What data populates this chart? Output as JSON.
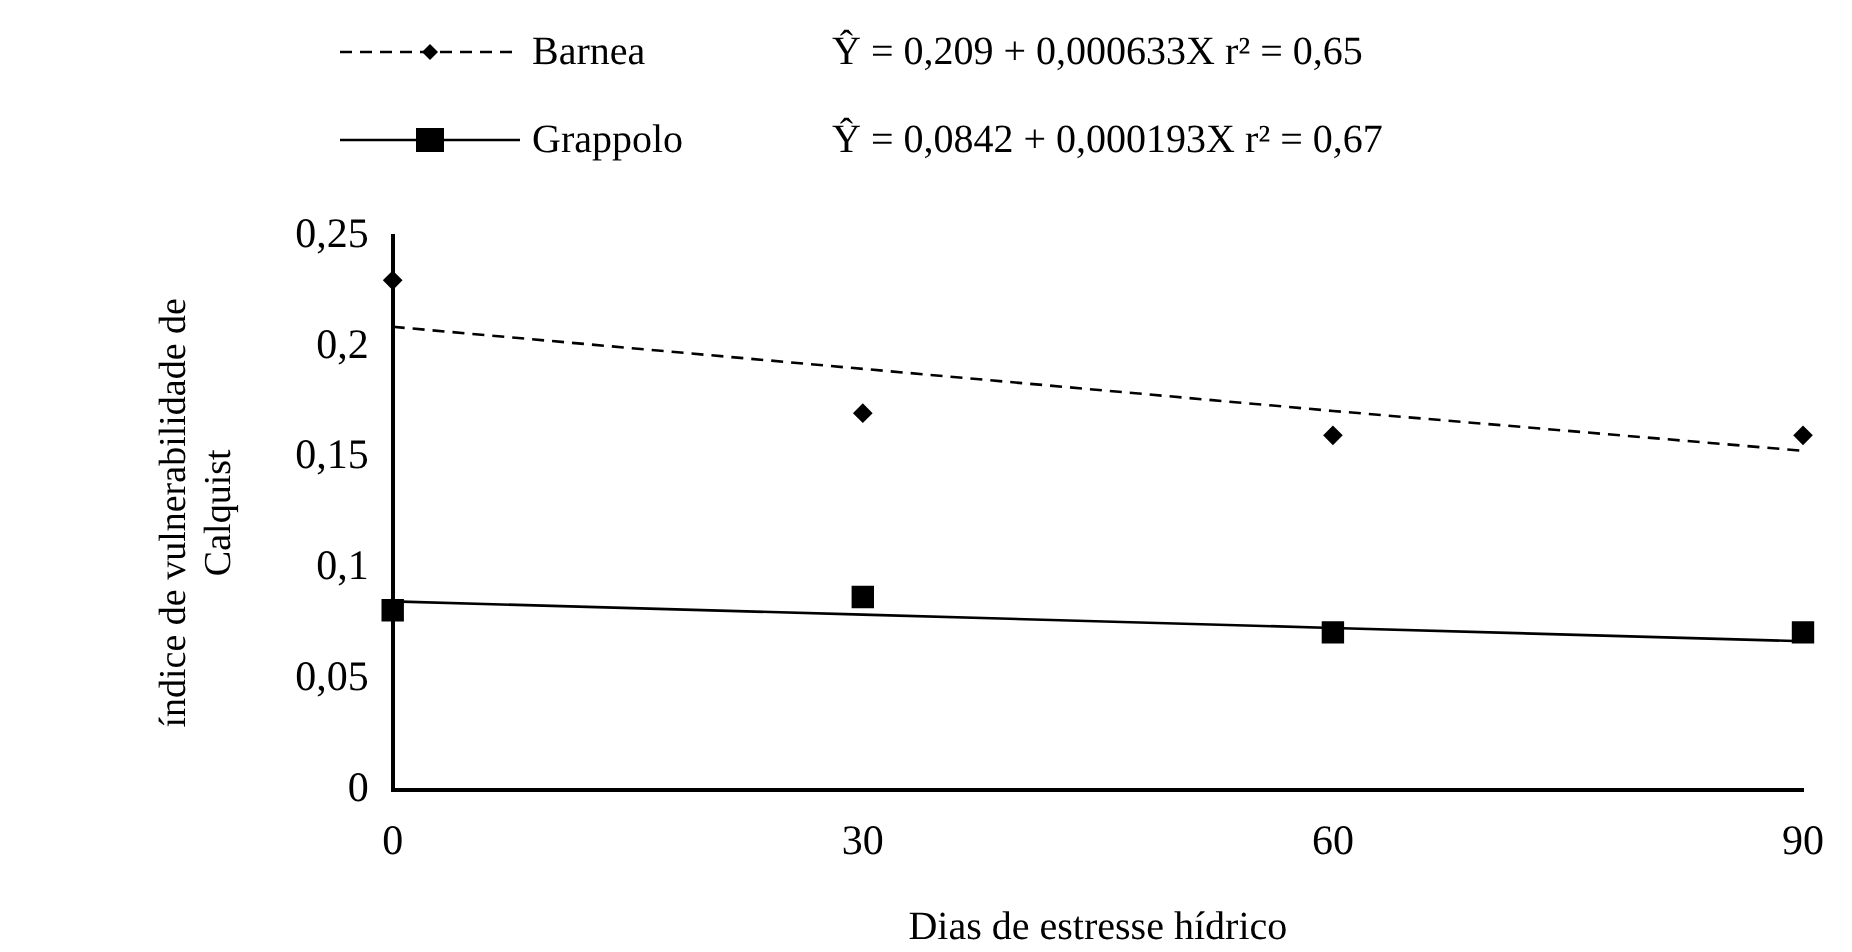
{
  "chart_data": {
    "type": "scatter",
    "xlabel": "Dias de estresse hídrico",
    "ylabel": "índice de vulnerabilidade de\nCalquist",
    "x": [
      0,
      30,
      60,
      90
    ],
    "xlim": [
      0,
      90
    ],
    "xticks": [
      0,
      30,
      60,
      90
    ],
    "ylim": [
      0,
      0.25
    ],
    "yticks": [
      0,
      {
        "value": 0.05,
        "label": "0,05"
      },
      {
        "value": 0.1,
        "label": "0,1"
      },
      {
        "value": 0.15,
        "label": "0,15"
      },
      {
        "value": 0.2,
        "label": "0,2"
      },
      {
        "value": 0.25,
        "label": "0,25"
      }
    ],
    "grid": false,
    "legend": "top",
    "series": [
      {
        "name": "Barnea",
        "color": "#000000",
        "marker": "diamond",
        "values": [
          0.23,
          0.17,
          0.16,
          0.16
        ]
      },
      {
        "type": "line",
        "color": "#000000",
        "line_style": "dashed",
        "marker": "none",
        "values": [
          0.209,
          0.19,
          0.171,
          0.153
        ]
      },
      {
        "name": "Grappolo",
        "color": "#000000",
        "marker": "square",
        "values": [
          0.081,
          0.087,
          0.071,
          0.071
        ]
      },
      {
        "type": "line",
        "color": "#000000",
        "line_style": "solid",
        "marker": "none",
        "values": [
          0.085,
          0.079,
          0.073,
          0.067
        ]
      }
    ],
    "annotations": [
      "Ŷ =  0,209 + 0,000633X  r² = 0,65",
      "Ŷ =  0,0842 + 0,000193X  r² = 0,67"
    ]
  }
}
